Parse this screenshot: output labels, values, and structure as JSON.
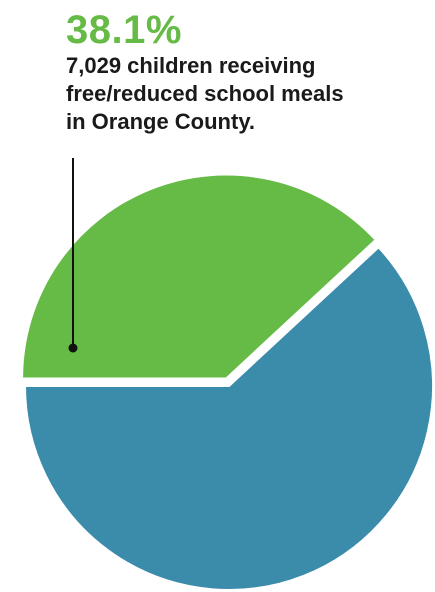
{
  "chart_data": {
    "type": "pie",
    "slices": [
      {
        "label": "children receiving free/reduced school meals",
        "value": 38.1,
        "color": "#66bb47",
        "highlighted": true
      },
      {
        "label": "",
        "value": 61.9,
        "color": "#3b8bab",
        "highlighted": false
      }
    ],
    "annotation": {
      "percent_text": "38.1%",
      "caption": "7,029 children receiving\nfree/reduced school meals\nin Orange County.",
      "percent_color": "#66bb47"
    }
  }
}
